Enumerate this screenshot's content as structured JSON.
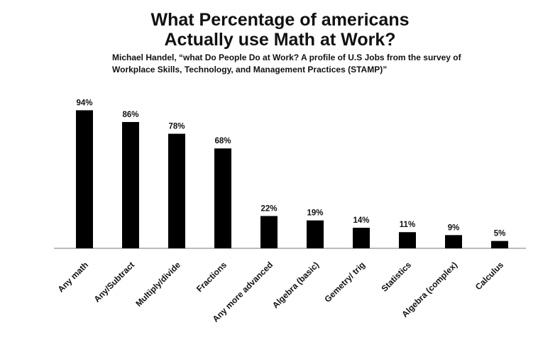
{
  "chart_data": {
    "type": "bar",
    "title_line1": "What Percentage of americans",
    "title_line2": "Actually use Math at Work?",
    "subtitle_line1": "Michael Handel, “what Do People Do at Work? A profile of U.S Jobs from the survey of",
    "subtitle_line2": "Workplace Skills, Technology, and Management Practices (STAMP)”",
    "categories": [
      "Any math",
      "Any/Subtract",
      "Multiply/divide",
      "Fractions",
      "Any more advanced",
      "Algebra (basic)",
      "Gemetry/ trig",
      "Statistics",
      "Algebra (complex)",
      "Calculus"
    ],
    "values": [
      94,
      86,
      78,
      68,
      22,
      19,
      14,
      11,
      9,
      5
    ],
    "value_labels": [
      "94%",
      "86%",
      "78%",
      "68%",
      "22%",
      "19%",
      "14%",
      "11%",
      "9%",
      "5%"
    ],
    "ylim": [
      0,
      100
    ],
    "bar_color": "#000000",
    "grid": false,
    "legend": "none"
  }
}
